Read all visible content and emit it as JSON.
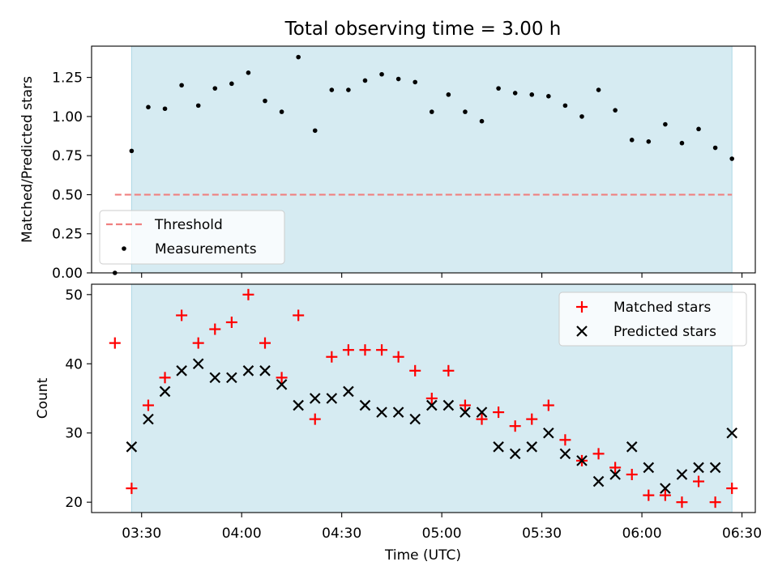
{
  "title": "Total observing time = 3.00 h",
  "colors": {
    "shade": "#add8e6",
    "threshold": "#f08080",
    "matched": "#ff0000",
    "predicted": "#000000",
    "measurements": "#000000"
  },
  "chart_data": [
    {
      "type": "scatter",
      "panel": "top",
      "title": "Total observing time = 3.00 h",
      "xlabel": "",
      "ylabel": "Matched/Predicted stars",
      "xlim": [
        "03:15",
        "06:34"
      ],
      "ylim": [
        0,
        1.45
      ],
      "yticks": [
        0.0,
        0.25,
        0.5,
        0.75,
        1.0,
        1.25
      ],
      "ytick_labels": [
        "0.00",
        "0.25",
        "0.50",
        "0.75",
        "1.00",
        "1.25"
      ],
      "shaded_region": {
        "x": [
          "03:27",
          "06:27"
        ],
        "color": "#add8e6"
      },
      "legend_position": "lower-left",
      "series": [
        {
          "name": "Threshold",
          "style": "dashed-line",
          "color": "#f08080",
          "x": [
            "03:22",
            "06:27"
          ],
          "y": [
            0.5,
            0.5
          ]
        },
        {
          "name": "Measurements",
          "style": "dot",
          "color": "#000000",
          "x": [
            "03:22",
            "03:27",
            "03:32",
            "03:37",
            "03:42",
            "03:47",
            "03:52",
            "03:57",
            "04:02",
            "04:07",
            "04:12",
            "04:17",
            "04:22",
            "04:27",
            "04:32",
            "04:37",
            "04:42",
            "04:47",
            "04:52",
            "04:57",
            "05:02",
            "05:07",
            "05:12",
            "05:17",
            "05:22",
            "05:27",
            "05:32",
            "05:37",
            "05:42",
            "05:47",
            "05:52",
            "05:57",
            "06:02",
            "06:07",
            "06:12",
            "06:17",
            "06:22",
            "06:27"
          ],
          "y": [
            0.0,
            0.78,
            1.06,
            1.05,
            1.2,
            1.07,
            1.18,
            1.21,
            1.28,
            1.1,
            1.03,
            1.38,
            0.91,
            1.17,
            1.17,
            1.23,
            1.27,
            1.24,
            1.22,
            1.03,
            1.14,
            1.03,
            0.97,
            1.18,
            1.15,
            1.14,
            1.13,
            1.07,
            1.0,
            1.17,
            1.04,
            0.85,
            0.84,
            0.95,
            0.83,
            0.92,
            0.8,
            0.73
          ]
        }
      ]
    },
    {
      "type": "scatter",
      "panel": "bottom",
      "xlabel": "Time (UTC)",
      "ylabel": "Count",
      "xlim": [
        "03:15",
        "06:34"
      ],
      "ylim": [
        18.5,
        51.5
      ],
      "yticks": [
        20,
        30,
        40,
        50
      ],
      "ytick_labels": [
        "20",
        "30",
        "40",
        "50"
      ],
      "xticks": [
        "03:30",
        "04:00",
        "04:30",
        "05:00",
        "05:30",
        "06:00",
        "06:30"
      ],
      "xtick_labels": [
        "03:30",
        "04:00",
        "04:30",
        "05:00",
        "05:30",
        "06:00",
        "06:30"
      ],
      "shaded_region": {
        "x": [
          "03:27",
          "06:27"
        ],
        "color": "#add8e6"
      },
      "legend_position": "top-right",
      "series": [
        {
          "name": "Matched stars",
          "marker": "+",
          "color": "#ff0000",
          "x": [
            "03:22",
            "03:27",
            "03:32",
            "03:37",
            "03:42",
            "03:47",
            "03:52",
            "03:57",
            "04:02",
            "04:07",
            "04:12",
            "04:17",
            "04:22",
            "04:27",
            "04:32",
            "04:37",
            "04:42",
            "04:47",
            "04:52",
            "04:57",
            "05:02",
            "05:07",
            "05:12",
            "05:17",
            "05:22",
            "05:27",
            "05:32",
            "05:37",
            "05:42",
            "05:47",
            "05:52",
            "05:57",
            "06:02",
            "06:07",
            "06:12",
            "06:17",
            "06:22",
            "06:27"
          ],
          "y": [
            43,
            22,
            34,
            38,
            47,
            43,
            45,
            46,
            50,
            43,
            38,
            47,
            32,
            41,
            42,
            42,
            42,
            41,
            39,
            35,
            39,
            34,
            32,
            33,
            31,
            32,
            34,
            29,
            26,
            27,
            25,
            24,
            21,
            21,
            20,
            23,
            20,
            22
          ]
        },
        {
          "name": "Predicted stars",
          "marker": "x",
          "color": "#000000",
          "x": [
            "03:27",
            "03:32",
            "03:37",
            "03:42",
            "03:47",
            "03:52",
            "03:57",
            "04:02",
            "04:07",
            "04:12",
            "04:17",
            "04:22",
            "04:27",
            "04:32",
            "04:37",
            "04:42",
            "04:47",
            "04:52",
            "04:57",
            "05:02",
            "05:07",
            "05:12",
            "05:17",
            "05:22",
            "05:27",
            "05:32",
            "05:37",
            "05:42",
            "05:47",
            "05:52",
            "05:57",
            "06:02",
            "06:07",
            "06:12",
            "06:17",
            "06:22",
            "06:27"
          ],
          "y": [
            28,
            32,
            36,
            39,
            40,
            38,
            38,
            39,
            39,
            37,
            34,
            35,
            35,
            36,
            34,
            33,
            33,
            32,
            34,
            34,
            33,
            33,
            28,
            27,
            28,
            30,
            27,
            26,
            23,
            24,
            28,
            25,
            22,
            24,
            25,
            25,
            30
          ]
        }
      ]
    }
  ]
}
